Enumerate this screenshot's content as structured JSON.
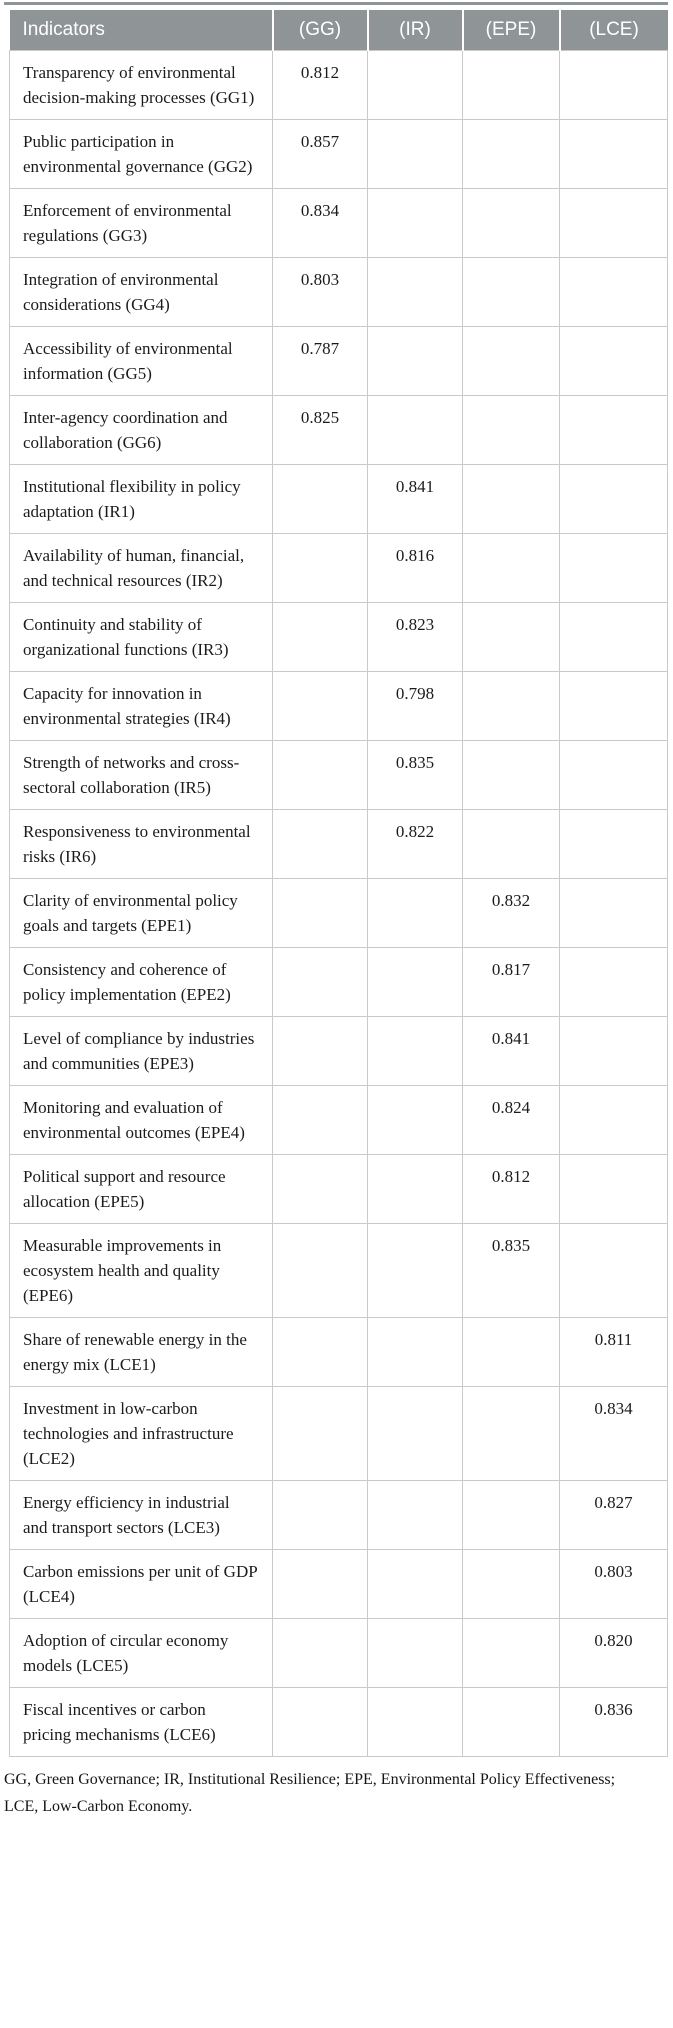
{
  "table": {
    "columns": [
      "Indicators",
      "(GG)",
      "(IR)",
      "(EPE)",
      "(LCE)"
    ],
    "rows": [
      {
        "indicator": "Transparency of environmental decision-making processes (GG1)",
        "gg": "0.812",
        "ir": "",
        "epe": "",
        "lce": ""
      },
      {
        "indicator": "Public participation in environmental governance (GG2)",
        "gg": "0.857",
        "ir": "",
        "epe": "",
        "lce": ""
      },
      {
        "indicator": "Enforcement of environmental regulations (GG3)",
        "gg": "0.834",
        "ir": "",
        "epe": "",
        "lce": ""
      },
      {
        "indicator": "Integration of environmental considerations (GG4)",
        "gg": "0.803",
        "ir": "",
        "epe": "",
        "lce": ""
      },
      {
        "indicator": "Accessibility of environmental information (GG5)",
        "gg": "0.787",
        "ir": "",
        "epe": "",
        "lce": ""
      },
      {
        "indicator": "Inter-agency coordination and collaboration (GG6)",
        "gg": "0.825",
        "ir": "",
        "epe": "",
        "lce": ""
      },
      {
        "indicator": "Institutional flexibility in policy adaptation (IR1)",
        "gg": "",
        "ir": "0.841",
        "epe": "",
        "lce": ""
      },
      {
        "indicator": "Availability of human, financial, and technical resources (IR2)",
        "gg": "",
        "ir": "0.816",
        "epe": "",
        "lce": ""
      },
      {
        "indicator": "Continuity and stability of organizational functions (IR3)",
        "gg": "",
        "ir": "0.823",
        "epe": "",
        "lce": ""
      },
      {
        "indicator": "Capacity for innovation in environmental strategies (IR4)",
        "gg": "",
        "ir": "0.798",
        "epe": "",
        "lce": ""
      },
      {
        "indicator": "Strength of networks and cross-sectoral collaboration (IR5)",
        "gg": "",
        "ir": "0.835",
        "epe": "",
        "lce": ""
      },
      {
        "indicator": "Responsiveness to environmental risks (IR6)",
        "gg": "",
        "ir": "0.822",
        "epe": "",
        "lce": ""
      },
      {
        "indicator": "Clarity of environmental policy goals and targets (EPE1)",
        "gg": "",
        "ir": "",
        "epe": "0.832",
        "lce": ""
      },
      {
        "indicator": "Consistency and coherence of policy implementation (EPE2)",
        "gg": "",
        "ir": "",
        "epe": "0.817",
        "lce": ""
      },
      {
        "indicator": "Level of compliance by industries and communities (EPE3)",
        "gg": "",
        "ir": "",
        "epe": "0.841",
        "lce": ""
      },
      {
        "indicator": "Monitoring and evaluation of environmental outcomes (EPE4)",
        "gg": "",
        "ir": "",
        "epe": "0.824",
        "lce": ""
      },
      {
        "indicator": "Political support and resource allocation (EPE5)",
        "gg": "",
        "ir": "",
        "epe": "0.812",
        "lce": ""
      },
      {
        "indicator": "Measurable improvements in ecosystem health and quality (EPE6)",
        "gg": "",
        "ir": "",
        "epe": "0.835",
        "lce": ""
      },
      {
        "indicator": "Share of renewable energy in the energy mix (LCE1)",
        "gg": "",
        "ir": "",
        "epe": "",
        "lce": "0.811"
      },
      {
        "indicator": "Investment in low-carbon technologies and infrastructure (LCE2)",
        "gg": "",
        "ir": "",
        "epe": "",
        "lce": "0.834"
      },
      {
        "indicator": "Energy efficiency in industrial and transport sectors (LCE3)",
        "gg": "",
        "ir": "",
        "epe": "",
        "lce": "0.827"
      },
      {
        "indicator": "Carbon emissions per unit of GDP (LCE4)",
        "gg": "",
        "ir": "",
        "epe": "",
        "lce": "0.803"
      },
      {
        "indicator": "Adoption of circular economy models (LCE5)",
        "gg": "",
        "ir": "",
        "epe": "",
        "lce": "0.820"
      },
      {
        "indicator": "Fiscal incentives or carbon pricing mechanisms (LCE6)",
        "gg": "",
        "ir": "",
        "epe": "",
        "lce": "0.836"
      }
    ]
  },
  "footnote": "GG, Green Governance; IR, Institutional Resilience; EPE, Environmental Policy Effectiveness; LCE, Low-Carbon Economy.",
  "colors": {
    "header_bg": "#8f9497",
    "header_text": "#ffffff",
    "grid": "#c9c9c9"
  }
}
